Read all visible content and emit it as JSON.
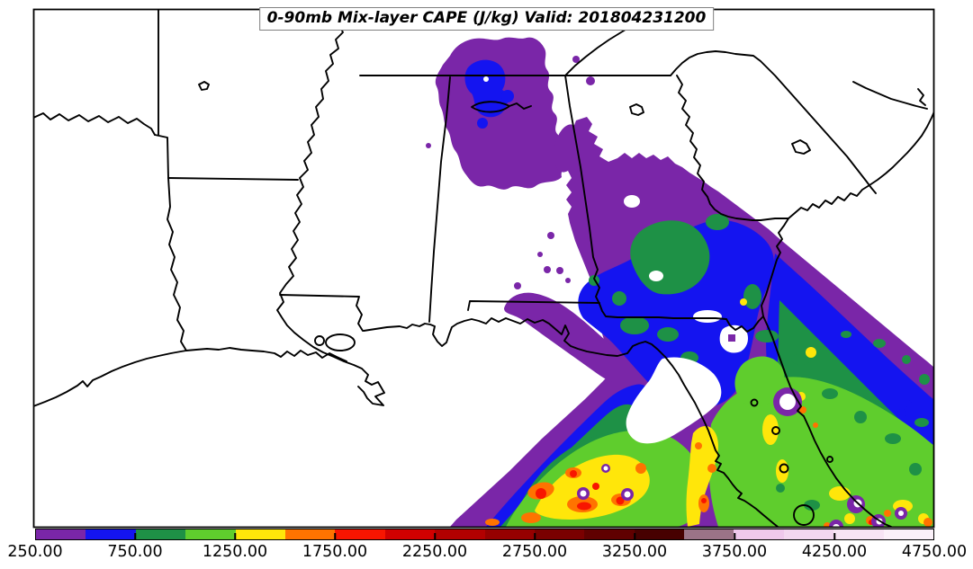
{
  "title": "0-90mb Mix-layer CAPE (J/kg) Valid: 201804231200",
  "colors": {
    "background": "#FFFFFF",
    "line": "#000000",
    "frame": "#000000",
    "title_border": "#7F7F7F",
    "purple": "#7A26A8",
    "blue": "#1414F0",
    "seagreen": "#1E9146",
    "lightgreen": "#5FCD2D",
    "yellow": "#FFE60A",
    "orange": "#FF7300",
    "red": "#F81500",
    "white": "#FFFFFF"
  },
  "colorbar": {
    "ticks": [
      "250.00",
      "750.00",
      "1250.00",
      "1750.00",
      "2250.00",
      "2750.00",
      "3250.00",
      "3750.00",
      "4250.00",
      "4750.00"
    ],
    "levels": [
      250,
      500,
      750,
      1000,
      1250,
      1500,
      1750,
      2000,
      2250,
      2500,
      2750,
      3000,
      3250,
      3500,
      3750,
      4000,
      4250,
      4500,
      4750
    ],
    "segment_colors": [
      "#7A26A8",
      "#1414F0",
      "#1E9146",
      "#5FCD2D",
      "#FFE60A",
      "#FF7300",
      "#F81500",
      "#D10000",
      "#B20000",
      "#960000",
      "#7A0000",
      "#600000",
      "#470000",
      "#9B7387",
      "#EFC8EC",
      "#F3D7F0",
      "#F7E4F4",
      "#FBF1F9"
    ]
  },
  "chart_data": {
    "type": "heatmap",
    "title": "0-90mb Mix-layer CAPE (J/kg) Valid: 201804231200",
    "variable": "0-90mb Mix-layer CAPE",
    "units": "J/kg",
    "valid_time": "201804231200",
    "map_extent": "Southeastern United States: east Texas, Louisiana, Arkansas, Mississippi, Alabama, Tennessee, Georgia, Carolinas, Florida, eastern Gulf of Mexico and adjacent Atlantic",
    "contour_levels": [
      250,
      500,
      750,
      1000,
      1250,
      1500,
      1750,
      2000,
      2250,
      2500,
      2750,
      3000,
      3250,
      3500,
      3750,
      4000,
      4250,
      4500,
      4750
    ],
    "level_colors": [
      "#7A26A8",
      "#1414F0",
      "#1E9146",
      "#5FCD2D",
      "#FFE60A",
      "#FF7300",
      "#F81500",
      "#D10000",
      "#B20000",
      "#960000",
      "#7A0000",
      "#600000",
      "#470000",
      "#9B7387",
      "#EFC8EC",
      "#F3D7F0",
      "#F7E4F4",
      "#FBF1F9"
    ],
    "legend_position": "bottom horizontal colorbar",
    "grid": false,
    "regions": [
      {
        "area": "north Alabama into southern middle Tennessee",
        "cape_jkg": "250-500 with embedded 500-750 cores"
      },
      {
        "area": "northwest and central Georgia",
        "cape_jkg": "250-500"
      },
      {
        "area": "south-central Georgia",
        "cape_jkg": "500-1000 core"
      },
      {
        "area": "southeast Georgia / southeast Alabama border into north Florida",
        "cape_jkg": "500-750 broad area"
      },
      {
        "area": "Florida panhandle coast",
        "cape_jkg": "250-500 band"
      },
      {
        "area": "Florida peninsula",
        "cape_jkg": "750-1500, scattered 1500-1750 pockets"
      },
      {
        "area": "eastern Gulf of Mexico south of the panhandle",
        "cape_jkg": "1000-2000 with isolated >1750 red cores"
      },
      {
        "area": "Atlantic offshore Georgia/Florida",
        "cape_jkg": "250-1250 banded, increasing toward the southwest"
      },
      {
        "area": "small convective-overturn holes (white/purple rings) inside the high-CAPE region",
        "cape_jkg": "<500"
      },
      {
        "area": "Texas, Louisiana, Arkansas, Mississippi, west Alabama, Carolinas",
        "cape_jkg": "<250 (white)"
      }
    ]
  }
}
